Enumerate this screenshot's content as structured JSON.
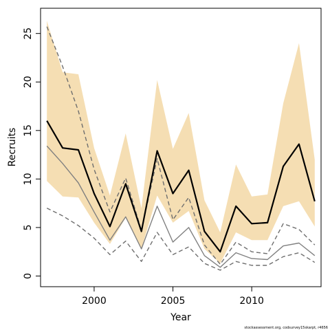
{
  "chart_data": {
    "type": "line",
    "xlabel": "Year",
    "ylabel": "Recruits",
    "xlim": [
      1996.6,
      2014.4
    ],
    "ylim": [
      -1.1,
      27.6
    ],
    "x_ticks": [
      2000,
      2005,
      2010
    ],
    "y_ticks": [
      0,
      5,
      10,
      15,
      20,
      25
    ],
    "grid": false,
    "legend": "none",
    "x": [
      1997,
      1998,
      1999,
      2000,
      2001,
      2002,
      2003,
      2004,
      2005,
      2006,
      2007,
      2008,
      2009,
      2010,
      2011,
      2012,
      2013,
      2014
    ],
    "band": {
      "color": "#f5deb3",
      "upper": [
        26.3,
        21.0,
        20.8,
        13.2,
        8.3,
        14.7,
        7.0,
        20.2,
        13.1,
        16.8,
        7.8,
        4.5,
        11.5,
        8.2,
        8.4,
        17.8,
        24.0,
        12.0
      ],
      "lower": [
        9.8,
        8.2,
        8.1,
        5.5,
        3.3,
        6.0,
        2.8,
        8.3,
        5.5,
        6.7,
        2.8,
        1.3,
        4.5,
        3.7,
        3.7,
        7.2,
        7.7,
        5.1
      ]
    },
    "series": [
      {
        "role": "estimate",
        "color": "#000000",
        "width": 2.2,
        "dash": "",
        "values": [
          16.0,
          13.2,
          13.0,
          8.5,
          5.1,
          9.5,
          4.6,
          12.9,
          8.5,
          10.9,
          4.6,
          2.5,
          7.2,
          5.4,
          5.5,
          11.3,
          13.6,
          7.7
        ]
      },
      {
        "role": "median",
        "color": "#808080",
        "width": 1.4,
        "dash": "",
        "values": [
          13.4,
          11.6,
          9.6,
          6.6,
          3.7,
          6.1,
          2.8,
          7.2,
          3.5,
          5.0,
          2.1,
          0.9,
          2.4,
          1.8,
          1.7,
          3.1,
          3.4,
          2.1
        ]
      },
      {
        "role": "upper",
        "color": "#6e6e6e",
        "width": 1.4,
        "dash": "6,4",
        "values": [
          25.7,
          21.6,
          17.0,
          11.0,
          6.6,
          10.1,
          4.7,
          12.1,
          5.8,
          8.1,
          3.2,
          1.2,
          3.5,
          2.5,
          2.3,
          5.4,
          4.8,
          3.2
        ]
      },
      {
        "role": "lower",
        "color": "#6e6e6e",
        "width": 1.4,
        "dash": "6,4",
        "values": [
          7.0,
          6.2,
          5.2,
          3.9,
          2.2,
          3.6,
          1.5,
          4.5,
          2.2,
          3.0,
          1.3,
          0.6,
          1.5,
          1.1,
          1.1,
          2.0,
          2.4,
          1.4
        ]
      }
    ],
    "credit": "stockassessment.org, codsurvey15skarpt, r4656"
  }
}
